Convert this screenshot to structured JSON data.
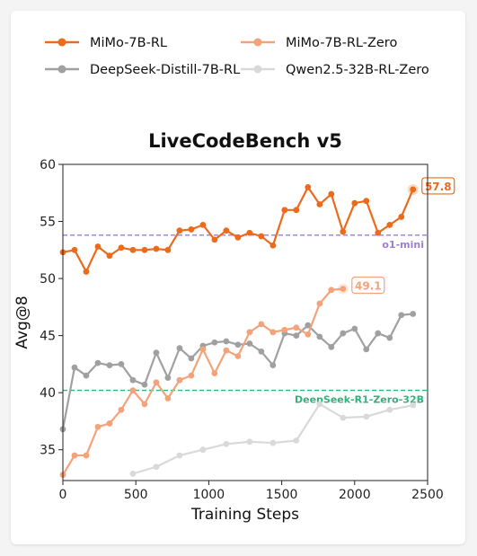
{
  "chart_data": {
    "type": "line",
    "title": "LiveCodeBench v5",
    "xlabel": "Training Steps",
    "ylabel": "Avg@8",
    "xlim": [
      0,
      2500
    ],
    "ylim": [
      32.3,
      60
    ],
    "xticks": [
      0,
      500,
      1000,
      1500,
      2000,
      2500
    ],
    "yticks": [
      35,
      40,
      45,
      50,
      55,
      60
    ],
    "grid": false,
    "legend_position": "top",
    "series": [
      {
        "name": "MiMo-7B-RL",
        "color": "#ec6a1c",
        "end_label": "57.8",
        "x": [
          0,
          80,
          160,
          240,
          320,
          400,
          480,
          560,
          640,
          720,
          800,
          880,
          960,
          1040,
          1120,
          1200,
          1280,
          1360,
          1440,
          1520,
          1600,
          1680,
          1760,
          1840,
          1920,
          2000,
          2080,
          2160,
          2240,
          2320,
          2400
        ],
        "y": [
          52.3,
          52.5,
          50.6,
          52.8,
          52.0,
          52.7,
          52.5,
          52.5,
          52.6,
          52.5,
          54.2,
          54.3,
          54.7,
          53.4,
          54.2,
          53.6,
          54.0,
          53.7,
          52.9,
          56.0,
          56.0,
          58.0,
          56.5,
          57.4,
          54.1,
          56.6,
          56.8,
          54.0,
          54.7,
          55.4,
          57.8
        ]
      },
      {
        "name": "MiMo-7B-RL-Zero",
        "color": "#f4a27a",
        "end_label": "49.1",
        "x": [
          0,
          80,
          160,
          240,
          320,
          400,
          480,
          560,
          640,
          720,
          800,
          880,
          960,
          1040,
          1120,
          1200,
          1280,
          1360,
          1440,
          1520,
          1600,
          1680,
          1760,
          1840,
          1920
        ],
        "y": [
          32.8,
          34.5,
          34.5,
          37.0,
          37.3,
          38.5,
          40.2,
          39.0,
          40.9,
          39.5,
          41.1,
          41.5,
          43.8,
          41.7,
          43.7,
          43.2,
          45.3,
          46.0,
          45.3,
          45.5,
          45.7,
          45.1,
          47.8,
          49.0,
          49.1
        ]
      },
      {
        "name": "DeepSeek-Distill-7B-RL",
        "color": "#a0a0a0",
        "x": [
          0,
          80,
          160,
          240,
          320,
          400,
          480,
          560,
          640,
          720,
          800,
          880,
          960,
          1040,
          1120,
          1200,
          1280,
          1360,
          1440,
          1520,
          1600,
          1680,
          1760,
          1840,
          1920,
          2000,
          2080,
          2160,
          2240,
          2320,
          2400
        ],
        "y": [
          36.8,
          42.2,
          41.5,
          42.6,
          42.4,
          42.5,
          41.1,
          40.7,
          43.5,
          41.3,
          43.9,
          43.0,
          44.1,
          44.4,
          44.5,
          44.2,
          44.3,
          43.6,
          42.4,
          45.2,
          45.0,
          45.9,
          44.9,
          44.0,
          45.2,
          45.6,
          43.8,
          45.2,
          44.8,
          46.8,
          46.9
        ]
      },
      {
        "name": "Qwen2.5-32B-RL-Zero",
        "color": "#d9d9d9",
        "x": [
          480,
          640,
          800,
          960,
          1120,
          1280,
          1440,
          1600,
          1760,
          1920,
          2080,
          2240,
          2400
        ],
        "y": [
          32.9,
          33.5,
          34.5,
          35.0,
          35.5,
          35.7,
          35.6,
          35.8,
          39.0,
          37.8,
          37.9,
          38.5,
          38.9
        ]
      }
    ],
    "reference_lines": [
      {
        "label": "o1-mini",
        "y": 53.8,
        "color": "#9b7fd4"
      },
      {
        "label": "DeepSeek-R1-Zero-32B",
        "y": 40.2,
        "color": "#2db37e"
      }
    ]
  }
}
